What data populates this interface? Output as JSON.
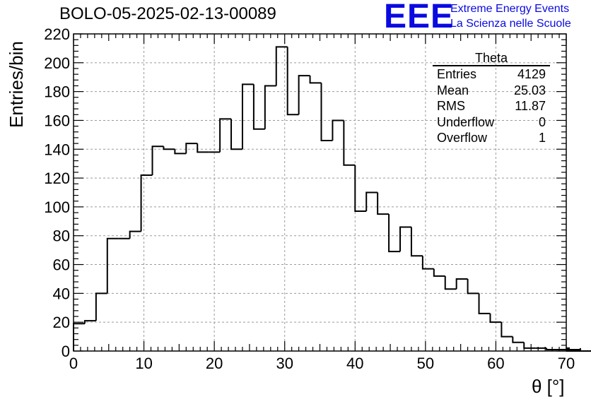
{
  "header": {
    "title": "BOLO-05-2025-02-13-00089",
    "logo_text": "EEE",
    "logo_line1": "Extreme Energy Events",
    "logo_line2": "La Scienza nelle Scuole"
  },
  "stats": {
    "title": "Theta",
    "rows": [
      {
        "label": "Entries",
        "value": "4129"
      },
      {
        "label": "Mean",
        "value": "25.03"
      },
      {
        "label": "RMS",
        "value": "11.87"
      },
      {
        "label": "Underflow",
        "value": "0"
      },
      {
        "label": "Overflow",
        "value": "1"
      }
    ]
  },
  "colors": {
    "line": "#000000",
    "grid": "#9a9a9a",
    "logo": "#0a0ae0"
  },
  "chart_data": {
    "type": "bar",
    "histogram_style": "step",
    "title": "BOLO-05-2025-02-13-00089",
    "xlabel": "θ [°]",
    "ylabel": "Entries/bin",
    "xlim": [
      0,
      70
    ],
    "ylim": [
      0,
      220
    ],
    "bin_width": 1.6,
    "x_ticks": [
      0,
      10,
      20,
      30,
      40,
      50,
      60,
      70
    ],
    "y_ticks": [
      0,
      20,
      40,
      60,
      80,
      100,
      120,
      140,
      160,
      180,
      200,
      220
    ],
    "grid": true,
    "legend": "top-right",
    "bin_edges_start": 0,
    "values": [
      19,
      21,
      40,
      78,
      78,
      83,
      122,
      142,
      140,
      137,
      144,
      138,
      138,
      161,
      140,
      185,
      154,
      184,
      211,
      164,
      191,
      186,
      146,
      160,
      129,
      97,
      110,
      95,
      69,
      86,
      66,
      57,
      52,
      43,
      50,
      40,
      26,
      20,
      10,
      6,
      2,
      2,
      1,
      1,
      2,
      1,
      0
    ]
  }
}
